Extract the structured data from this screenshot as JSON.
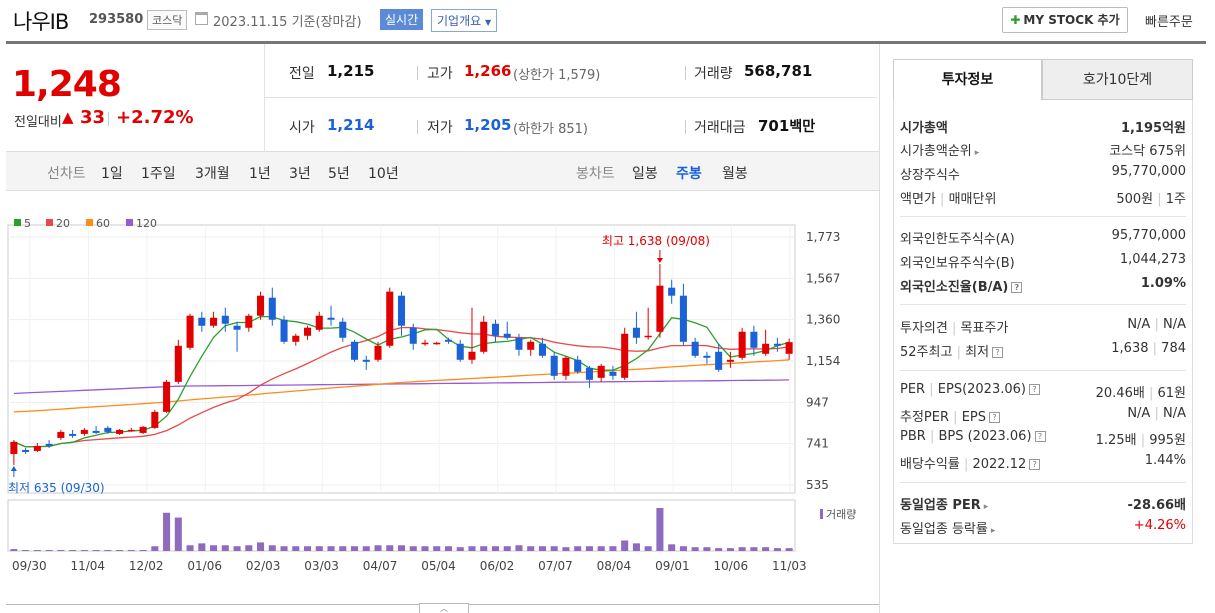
{
  "header": {
    "name": "나우IB",
    "code": "293580",
    "market": "코스닥",
    "date": "2023.11.15",
    "basis": "기준(장마감)",
    "realtime": "실시간",
    "corp_overview": "기업개요",
    "mystock": "MY STOCK 추가",
    "quick_order": "빠른주문"
  },
  "price": {
    "current": "1,248",
    "change_label": "전일대비",
    "change_value": "33",
    "change_pct": "+2.72%",
    "prev_label": "전일",
    "prev": "1,215",
    "high_label": "고가",
    "high": "1,266",
    "upper_limit": "(상한가 1,579)",
    "volume_label": "거래량",
    "volume": "568,781",
    "open_label": "시가",
    "open": "1,214",
    "low_label": "저가",
    "low": "1,205",
    "lower_limit": "(하한가 851)",
    "amount_label": "거래대금",
    "amount": "701",
    "amount_unit": "백만"
  },
  "period_bar": {
    "line_label": "선차트",
    "line_periods": [
      "1일",
      "1주일",
      "3개월",
      "1년",
      "3년",
      "5년",
      "10년"
    ],
    "candle_label": "봉차트",
    "candle_periods": [
      "일봉",
      "주봉",
      "월봉"
    ],
    "candle_active": "주봉"
  },
  "tabs": {
    "invest_info": "투자정보",
    "orderbook": "호가10단계"
  },
  "invest": {
    "market_cap_label": "시가총액",
    "market_cap": "1,195억원",
    "cap_rank_label": "시가총액순위",
    "cap_rank": "코스닥 675위",
    "shares_label": "상장주식수",
    "shares": "95,770,000",
    "face_label": "액면가",
    "unit_label": "매매단위",
    "face": "500원",
    "unit": "1주",
    "foreign_limit_label": "외국인한도주식수(A)",
    "foreign_limit": "95,770,000",
    "foreign_hold_label": "외국인보유주식수(B)",
    "foreign_hold": "1,044,273",
    "foreign_ratio_label": "외국인소진율(B/A)",
    "foreign_ratio": "1.09%",
    "opinion_label": "투자의견",
    "target_label": "목표주가",
    "opinion": "N/A",
    "target": "N/A",
    "w52_label": "52주최고",
    "w52_low_label": "최저",
    "w52_high": "1,638",
    "w52_low": "784",
    "per_label": "PER",
    "eps_label": "EPS(2023.06)",
    "per": "20.46배",
    "eps": "61원",
    "est_per_label": "추정PER",
    "est_eps_label": "EPS",
    "est_per": "N/A",
    "est_eps": "N/A",
    "pbr_label": "PBR",
    "bps_label": "BPS (2023.06)",
    "pbr": "1.25배",
    "bps": "995원",
    "div_label": "배당수익률",
    "div_date": "2022.12",
    "div": "1.44%",
    "sector_per_label": "동일업종 PER",
    "sector_per": "-28.66배",
    "sector_rate_label": "동일업종 등락률",
    "sector_rate": "+4.26%"
  },
  "colors": {
    "up": "#e10000",
    "down": "#1a62d6",
    "ma5": "#2ca02c",
    "ma20": "#e84a4a",
    "ma60": "#ff8c1a",
    "ma120": "#9b59d0",
    "volume": "#8e6bbf"
  },
  "chart_data": {
    "type": "candlestick",
    "legend": [
      "5",
      "20",
      "60",
      "120"
    ],
    "y_ticks": [
      "1,773",
      "1,567",
      "1,360",
      "1,154",
      "947",
      "741",
      "535"
    ],
    "ylim": [
      535,
      1773
    ],
    "x_ticks": [
      "09/30",
      "11/04",
      "12/02",
      "01/06",
      "02/03",
      "03/03",
      "04/07",
      "05/04",
      "06/02",
      "07/07",
      "08/04",
      "09/01",
      "10/06",
      "11/03"
    ],
    "max_label": "최고 1,638 (09/08)",
    "min_label": "최저 635 (09/30)",
    "volume_label": "거래량",
    "candles": [
      {
        "o": 690,
        "c": 750,
        "h": 760,
        "l": 635
      },
      {
        "o": 710,
        "c": 700,
        "h": 720,
        "l": 690
      },
      {
        "o": 705,
        "c": 730,
        "h": 745,
        "l": 700
      },
      {
        "o": 740,
        "c": 730,
        "h": 760,
        "l": 720
      },
      {
        "o": 770,
        "c": 800,
        "h": 810,
        "l": 760
      },
      {
        "o": 790,
        "c": 780,
        "h": 810,
        "l": 770
      },
      {
        "o": 790,
        "c": 810,
        "h": 820,
        "l": 780
      },
      {
        "o": 805,
        "c": 795,
        "h": 830,
        "l": 790
      },
      {
        "o": 820,
        "c": 800,
        "h": 830,
        "l": 790
      },
      {
        "o": 790,
        "c": 810,
        "h": 815,
        "l": 785
      },
      {
        "o": 805,
        "c": 810,
        "h": 820,
        "l": 800
      },
      {
        "o": 795,
        "c": 825,
        "h": 830,
        "l": 790
      },
      {
        "o": 820,
        "c": 900,
        "h": 910,
        "l": 815
      },
      {
        "o": 900,
        "c": 1050,
        "h": 1060,
        "l": 895
      },
      {
        "o": 1050,
        "c": 1230,
        "h": 1260,
        "l": 1040
      },
      {
        "o": 1220,
        "c": 1380,
        "h": 1390,
        "l": 1210
      },
      {
        "o": 1370,
        "c": 1330,
        "h": 1400,
        "l": 1300
      },
      {
        "o": 1330,
        "c": 1370,
        "h": 1400,
        "l": 1320
      },
      {
        "o": 1380,
        "c": 1340,
        "h": 1420,
        "l": 1300
      },
      {
        "o": 1330,
        "c": 1310,
        "h": 1350,
        "l": 1200
      },
      {
        "o": 1320,
        "c": 1380,
        "h": 1390,
        "l": 1300
      },
      {
        "o": 1380,
        "c": 1480,
        "h": 1500,
        "l": 1360
      },
      {
        "o": 1470,
        "c": 1360,
        "h": 1520,
        "l": 1330
      },
      {
        "o": 1360,
        "c": 1250,
        "h": 1380,
        "l": 1240
      },
      {
        "o": 1250,
        "c": 1280,
        "h": 1290,
        "l": 1230
      },
      {
        "o": 1280,
        "c": 1320,
        "h": 1330,
        "l": 1260
      },
      {
        "o": 1310,
        "c": 1380,
        "h": 1400,
        "l": 1300
      },
      {
        "o": 1370,
        "c": 1360,
        "h": 1430,
        "l": 1330
      },
      {
        "o": 1350,
        "c": 1270,
        "h": 1370,
        "l": 1250
      },
      {
        "o": 1250,
        "c": 1160,
        "h": 1260,
        "l": 1150
      },
      {
        "o": 1160,
        "c": 1150,
        "h": 1180,
        "l": 1110
      },
      {
        "o": 1160,
        "c": 1230,
        "h": 1250,
        "l": 1150
      },
      {
        "o": 1230,
        "c": 1500,
        "h": 1520,
        "l": 1220
      },
      {
        "o": 1480,
        "c": 1330,
        "h": 1500,
        "l": 1280
      },
      {
        "o": 1320,
        "c": 1240,
        "h": 1340,
        "l": 1210
      },
      {
        "o": 1240,
        "c": 1245,
        "h": 1260,
        "l": 1230
      },
      {
        "o": 1240,
        "c": 1245,
        "h": 1250,
        "l": 1235
      },
      {
        "o": 1260,
        "c": 1250,
        "h": 1270,
        "l": 1240
      },
      {
        "o": 1240,
        "c": 1160,
        "h": 1260,
        "l": 1150
      },
      {
        "o": 1160,
        "c": 1200,
        "h": 1420,
        "l": 1140
      },
      {
        "o": 1200,
        "c": 1350,
        "h": 1380,
        "l": 1190
      },
      {
        "o": 1340,
        "c": 1280,
        "h": 1360,
        "l": 1250
      },
      {
        "o": 1290,
        "c": 1270,
        "h": 1350,
        "l": 1260
      },
      {
        "o": 1270,
        "c": 1210,
        "h": 1290,
        "l": 1180
      },
      {
        "o": 1210,
        "c": 1250,
        "h": 1260,
        "l": 1180
      },
      {
        "o": 1240,
        "c": 1180,
        "h": 1270,
        "l": 1170
      },
      {
        "o": 1180,
        "c": 1080,
        "h": 1200,
        "l": 1060
      },
      {
        "o": 1080,
        "c": 1170,
        "h": 1180,
        "l": 1060
      },
      {
        "o": 1160,
        "c": 1100,
        "h": 1180,
        "l": 1090
      },
      {
        "o": 1120,
        "c": 1060,
        "h": 1130,
        "l": 1020
      },
      {
        "o": 1070,
        "c": 1130,
        "h": 1140,
        "l": 1050
      },
      {
        "o": 1100,
        "c": 1080,
        "h": 1130,
        "l": 1060
      },
      {
        "o": 1070,
        "c": 1290,
        "h": 1320,
        "l": 1060
      },
      {
        "o": 1320,
        "c": 1270,
        "h": 1400,
        "l": 1240
      },
      {
        "o": 1280,
        "c": 1280,
        "h": 1420,
        "l": 1260
      },
      {
        "o": 1300,
        "c": 1530,
        "h": 1638,
        "l": 1270
      },
      {
        "o": 1520,
        "c": 1480,
        "h": 1560,
        "l": 1440
      },
      {
        "o": 1480,
        "c": 1250,
        "h": 1540,
        "l": 1230
      },
      {
        "o": 1250,
        "c": 1180,
        "h": 1270,
        "l": 1170
      },
      {
        "o": 1180,
        "c": 1170,
        "h": 1200,
        "l": 1140
      },
      {
        "o": 1200,
        "c": 1110,
        "h": 1240,
        "l": 1100
      },
      {
        "o": 1150,
        "c": 1160,
        "h": 1200,
        "l": 1120
      },
      {
        "o": 1170,
        "c": 1300,
        "h": 1320,
        "l": 1160
      },
      {
        "o": 1300,
        "c": 1220,
        "h": 1330,
        "l": 1180
      },
      {
        "o": 1190,
        "c": 1240,
        "h": 1310,
        "l": 1180
      },
      {
        "o": 1240,
        "c": 1230,
        "h": 1270,
        "l": 1200
      },
      {
        "o": 1190,
        "c": 1248,
        "h": 1266,
        "l": 1160
      }
    ],
    "volumes": [
      2,
      1,
      1,
      1,
      1,
      1,
      1,
      1,
      1,
      1,
      1,
      1,
      5,
      40,
      35,
      6,
      8,
      6,
      6,
      5,
      6,
      9,
      6,
      5,
      5,
      5,
      5,
      5,
      5,
      5,
      5,
      6,
      6,
      6,
      5,
      5,
      5,
      5,
      4,
      5,
      5,
      5,
      5,
      6,
      5,
      5,
      5,
      4,
      5,
      5,
      5,
      5,
      11,
      8,
      5,
      45,
      7,
      5,
      4,
      4,
      3,
      3,
      4,
      4,
      4,
      3,
      3
    ]
  }
}
